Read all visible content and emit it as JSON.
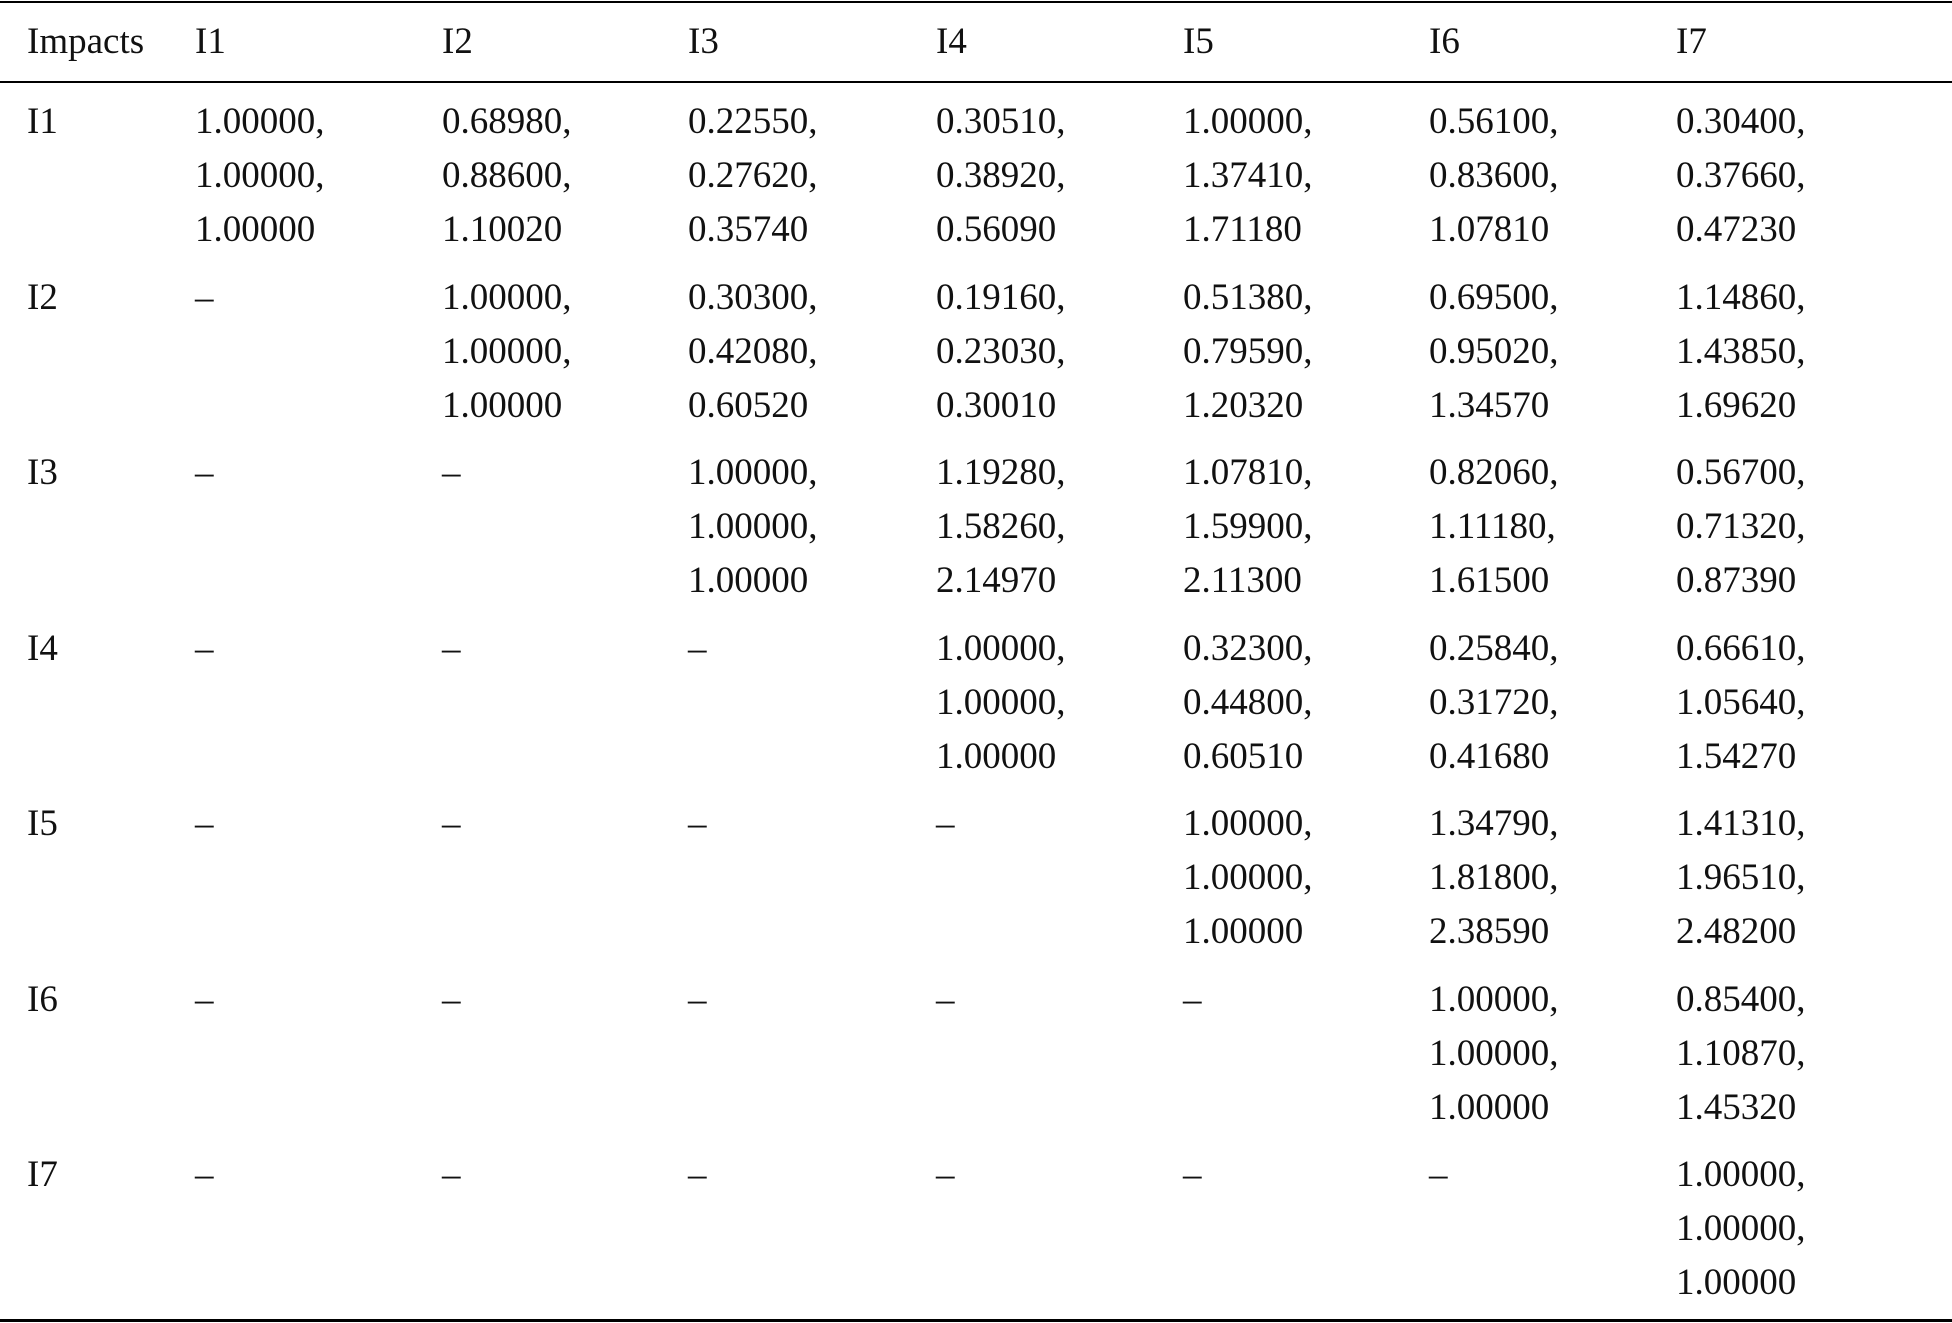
{
  "table": {
    "header": [
      "Impacts",
      "I1",
      "I2",
      "I3",
      "I4",
      "I5",
      "I6",
      "I7"
    ],
    "rows": [
      [
        [
          "I1"
        ],
        [
          "1.00000,",
          "1.00000,",
          "1.00000"
        ],
        [
          "0.68980,",
          "0.88600,",
          "1.10020"
        ],
        [
          "0.22550,",
          "0.27620,",
          "0.35740"
        ],
        [
          "0.30510,",
          "0.38920,",
          "0.56090"
        ],
        [
          "1.00000,",
          "1.37410,",
          "1.71180"
        ],
        [
          "0.56100,",
          "0.83600,",
          "1.07810"
        ],
        [
          "0.30400,",
          "0.37660,",
          "0.47230"
        ]
      ],
      [
        [
          "I2"
        ],
        [
          "–"
        ],
        [
          "1.00000,",
          "1.00000,",
          "1.00000"
        ],
        [
          "0.30300,",
          "0.42080,",
          "0.60520"
        ],
        [
          "0.19160,",
          "0.23030,",
          "0.30010"
        ],
        [
          "0.51380,",
          "0.79590,",
          "1.20320"
        ],
        [
          "0.69500,",
          "0.95020,",
          "1.34570"
        ],
        [
          "1.14860,",
          "1.43850,",
          "1.69620"
        ]
      ],
      [
        [
          "I3"
        ],
        [
          "–"
        ],
        [
          "–"
        ],
        [
          "1.00000,",
          "1.00000,",
          "1.00000"
        ],
        [
          "1.19280,",
          "1.58260,",
          "2.14970"
        ],
        [
          "1.07810,",
          "1.59900,",
          "2.11300"
        ],
        [
          "0.82060,",
          "1.11180,",
          "1.61500"
        ],
        [
          "0.56700,",
          "0.71320,",
          "0.87390"
        ]
      ],
      [
        [
          "I4"
        ],
        [
          "–"
        ],
        [
          "–"
        ],
        [
          "–"
        ],
        [
          "1.00000,",
          "1.00000,",
          "1.00000"
        ],
        [
          "0.32300,",
          "0.44800,",
          "0.60510"
        ],
        [
          "0.25840,",
          "0.31720,",
          "0.41680"
        ],
        [
          "0.66610,",
          "1.05640,",
          "1.54270"
        ]
      ],
      [
        [
          "I5"
        ],
        [
          "–"
        ],
        [
          "–"
        ],
        [
          "–"
        ],
        [
          "–"
        ],
        [
          "1.00000,",
          "1.00000,",
          "1.00000"
        ],
        [
          "1.34790,",
          "1.81800,",
          "2.38590"
        ],
        [
          "1.41310,",
          "1.96510,",
          "2.48200"
        ]
      ],
      [
        [
          "I6"
        ],
        [
          "–"
        ],
        [
          "–"
        ],
        [
          "–"
        ],
        [
          "–"
        ],
        [
          "–"
        ],
        [
          "1.00000,",
          "1.00000,",
          "1.00000"
        ],
        [
          "0.85400,",
          "1.10870,",
          "1.45320"
        ]
      ],
      [
        [
          "I7"
        ],
        [
          "–"
        ],
        [
          "–"
        ],
        [
          "–"
        ],
        [
          "–"
        ],
        [
          "–"
        ],
        [
          "–"
        ],
        [
          "1.00000,",
          "1.00000,",
          "1.00000"
        ]
      ]
    ]
  }
}
